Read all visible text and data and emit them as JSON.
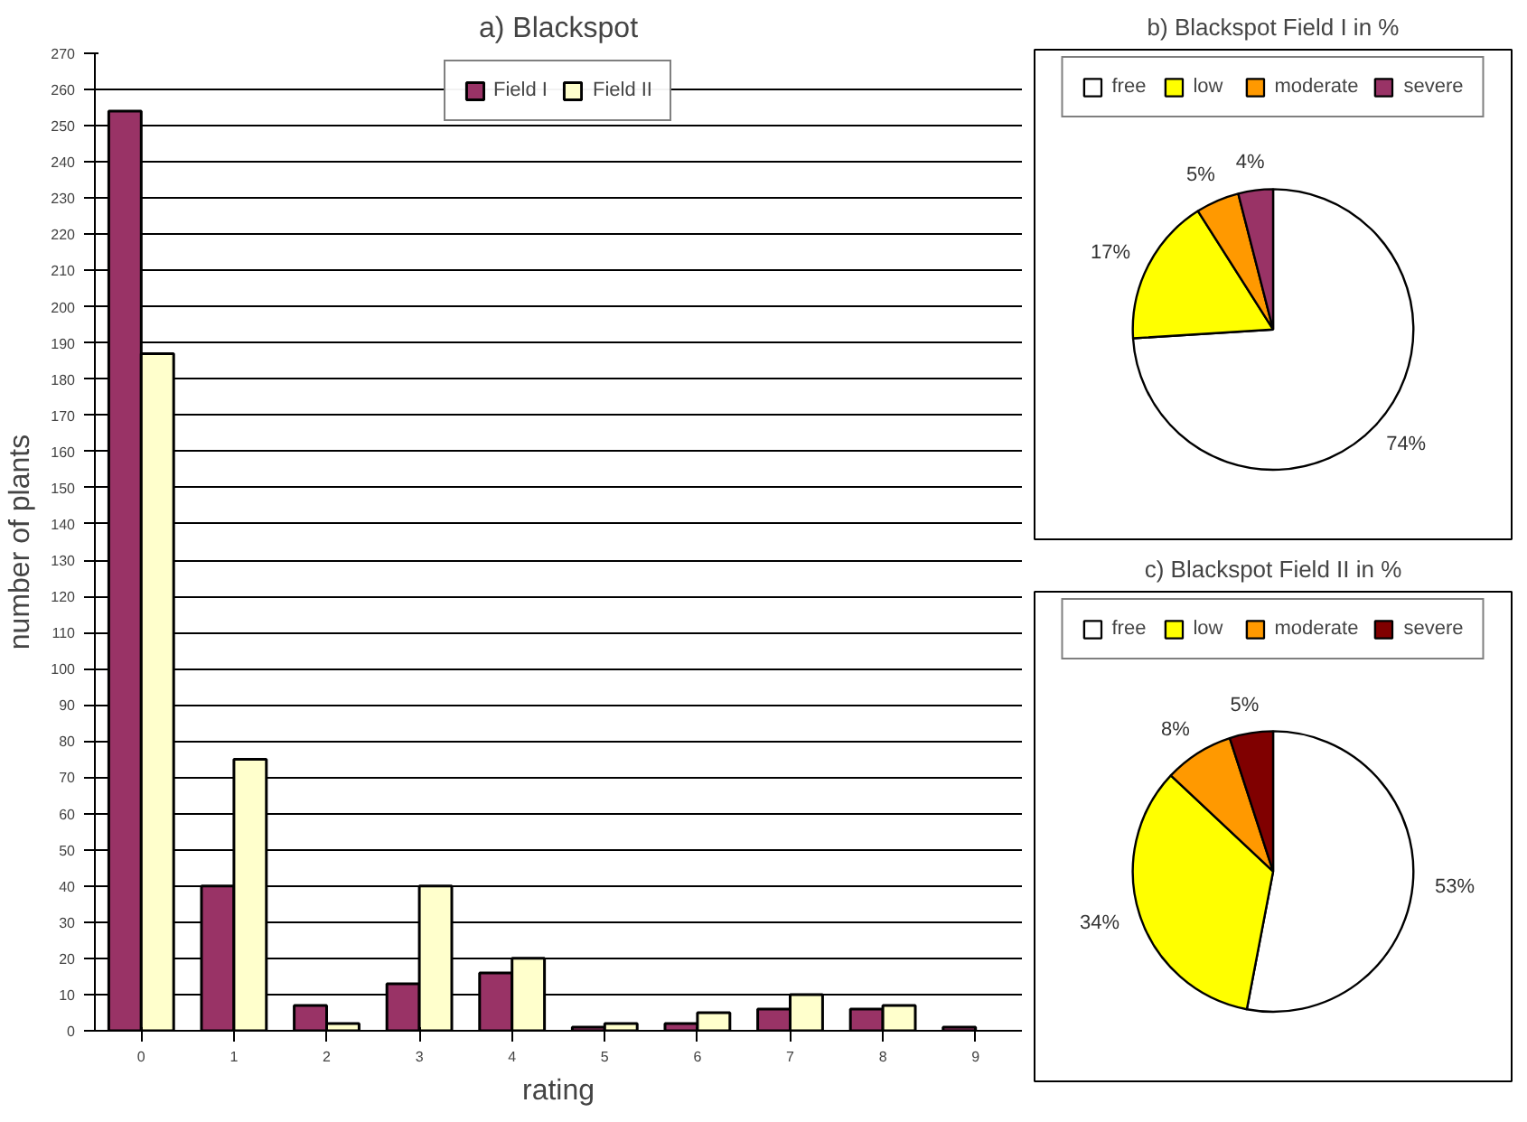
{
  "chart_data": [
    {
      "type": "bar",
      "title": "a) Blackspot",
      "xlabel": "rating",
      "ylabel": "number of plants",
      "categories": [
        "0",
        "1",
        "2",
        "3",
        "4",
        "5",
        "6",
        "7",
        "8",
        "9"
      ],
      "series": [
        {
          "name": "Field I",
          "color": "#993366",
          "values": [
            254,
            40,
            7,
            13,
            16,
            1,
            2,
            6,
            6,
            1
          ]
        },
        {
          "name": "Field II",
          "color": "#ffffcc",
          "values": [
            187,
            75,
            2,
            40,
            20,
            2,
            5,
            10,
            7,
            null
          ]
        }
      ],
      "ylim": [
        0,
        270
      ],
      "yticks": [
        0,
        10,
        20,
        30,
        40,
        50,
        60,
        70,
        80,
        90,
        100,
        110,
        120,
        130,
        140,
        150,
        160,
        170,
        180,
        190,
        200,
        210,
        220,
        230,
        240,
        250,
        260,
        270
      ],
      "grid": "y",
      "legend": "top"
    },
    {
      "type": "pie",
      "title": "b) Blackspot Field I in %",
      "categories": [
        "free",
        "low",
        "moderate",
        "severe"
      ],
      "values": [
        74,
        17,
        5,
        4
      ],
      "colors": [
        "#ffffff",
        "#ffff00",
        "#ff9900",
        "#993366"
      ],
      "value_labels": [
        "74%",
        "17%",
        "5%",
        "4%"
      ],
      "legend": "top"
    },
    {
      "type": "pie",
      "title": "c) Blackspot Field II in %",
      "categories": [
        "free",
        "low",
        "moderate",
        "severe"
      ],
      "values": [
        53,
        34,
        8,
        5
      ],
      "colors": [
        "#ffffff",
        "#ffff00",
        "#ff9900",
        "#800000"
      ],
      "value_labels": [
        "53%",
        "34%",
        "8%",
        "5%"
      ],
      "legend": "top"
    }
  ]
}
